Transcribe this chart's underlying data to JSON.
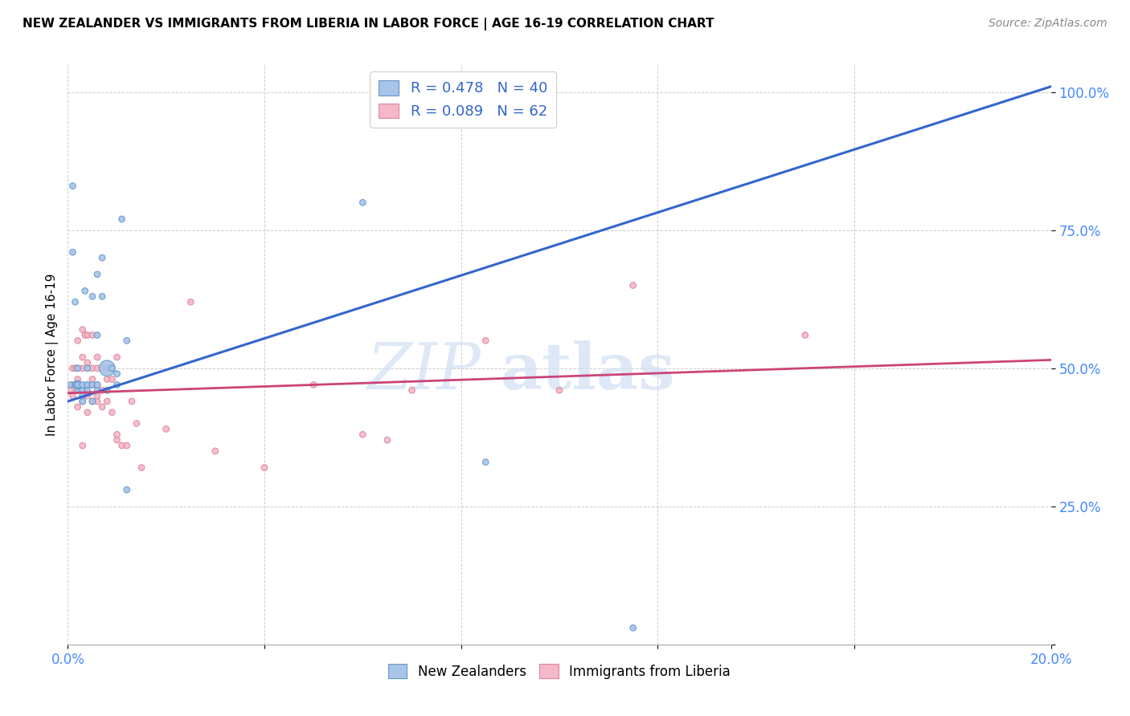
{
  "title": "NEW ZEALANDER VS IMMIGRANTS FROM LIBERIA IN LABOR FORCE | AGE 16-19 CORRELATION CHART",
  "source": "Source: ZipAtlas.com",
  "ylabel": "In Labor Force | Age 16-19",
  "xmin": 0.0,
  "xmax": 0.2,
  "ymin": 0.0,
  "ymax": 1.05,
  "watermark_line1": "ZIP",
  "watermark_line2": "atlas",
  "legend_blue_text": "R = 0.478   N = 40",
  "legend_pink_text": "R = 0.089   N = 62",
  "blue_color": "#a8c4e8",
  "blue_edge_color": "#6699cc",
  "blue_line_color": "#3366cc",
  "pink_color": "#f4b8c8",
  "pink_edge_color": "#dd8899",
  "pink_line_color": "#cc4477",
  "blue_line_x0": 0.0,
  "blue_line_x1": 0.2,
  "blue_line_y0": 0.44,
  "blue_line_y1": 1.01,
  "pink_line_x0": 0.0,
  "pink_line_x1": 0.2,
  "pink_line_y0": 0.455,
  "pink_line_y1": 0.515,
  "blue_scatter_x": [
    0.0005,
    0.001,
    0.001,
    0.0015,
    0.0015,
    0.002,
    0.002,
    0.002,
    0.002,
    0.002,
    0.003,
    0.003,
    0.003,
    0.003,
    0.0035,
    0.004,
    0.004,
    0.004,
    0.004,
    0.005,
    0.005,
    0.005,
    0.006,
    0.006,
    0.006,
    0.006,
    0.007,
    0.007,
    0.008,
    0.008,
    0.008,
    0.009,
    0.01,
    0.01,
    0.011,
    0.012,
    0.012,
    0.06,
    0.085,
    0.115
  ],
  "blue_scatter_y": [
    0.47,
    0.83,
    0.71,
    0.62,
    0.47,
    0.46,
    0.47,
    0.47,
    0.47,
    0.5,
    0.44,
    0.45,
    0.46,
    0.47,
    0.64,
    0.46,
    0.47,
    0.47,
    0.5,
    0.44,
    0.47,
    0.63,
    0.46,
    0.47,
    0.56,
    0.67,
    0.63,
    0.7,
    0.46,
    0.5,
    0.5,
    0.5,
    0.47,
    0.49,
    0.77,
    0.55,
    0.28,
    0.8,
    0.33,
    0.03
  ],
  "blue_scatter_s": [
    30,
    30,
    30,
    30,
    30,
    30,
    60,
    30,
    30,
    30,
    30,
    30,
    30,
    30,
    30,
    30,
    30,
    30,
    30,
    30,
    30,
    30,
    30,
    30,
    30,
    30,
    30,
    30,
    30,
    30,
    200,
    30,
    30,
    30,
    30,
    30,
    30,
    30,
    30,
    30
  ],
  "pink_scatter_x": [
    0.0005,
    0.001,
    0.001,
    0.001,
    0.0015,
    0.002,
    0.002,
    0.002,
    0.002,
    0.002,
    0.002,
    0.003,
    0.003,
    0.003,
    0.003,
    0.003,
    0.003,
    0.0035,
    0.004,
    0.004,
    0.004,
    0.004,
    0.004,
    0.004,
    0.005,
    0.005,
    0.005,
    0.005,
    0.005,
    0.006,
    0.006,
    0.006,
    0.006,
    0.006,
    0.007,
    0.007,
    0.007,
    0.008,
    0.008,
    0.008,
    0.009,
    0.009,
    0.01,
    0.01,
    0.01,
    0.011,
    0.012,
    0.013,
    0.014,
    0.015,
    0.02,
    0.025,
    0.03,
    0.04,
    0.05,
    0.06,
    0.065,
    0.07,
    0.085,
    0.1,
    0.115,
    0.15
  ],
  "pink_scatter_y": [
    0.46,
    0.45,
    0.47,
    0.5,
    0.5,
    0.43,
    0.46,
    0.47,
    0.48,
    0.5,
    0.55,
    0.36,
    0.44,
    0.46,
    0.5,
    0.52,
    0.57,
    0.56,
    0.42,
    0.45,
    0.47,
    0.5,
    0.51,
    0.56,
    0.44,
    0.47,
    0.48,
    0.5,
    0.56,
    0.44,
    0.45,
    0.47,
    0.5,
    0.52,
    0.43,
    0.46,
    0.5,
    0.44,
    0.48,
    0.5,
    0.42,
    0.48,
    0.37,
    0.38,
    0.52,
    0.36,
    0.36,
    0.44,
    0.4,
    0.32,
    0.39,
    0.62,
    0.35,
    0.32,
    0.47,
    0.38,
    0.37,
    0.46,
    0.55,
    0.46,
    0.65,
    0.56
  ],
  "pink_scatter_s": [
    30,
    30,
    30,
    30,
    30,
    30,
    30,
    30,
    30,
    30,
    30,
    30,
    30,
    30,
    30,
    30,
    30,
    30,
    30,
    30,
    30,
    30,
    30,
    30,
    30,
    30,
    30,
    30,
    30,
    30,
    30,
    30,
    30,
    30,
    30,
    30,
    30,
    30,
    30,
    30,
    30,
    30,
    30,
    30,
    30,
    30,
    30,
    30,
    30,
    30,
    30,
    30,
    30,
    30,
    30,
    30,
    30,
    30,
    30,
    30,
    30,
    30
  ]
}
